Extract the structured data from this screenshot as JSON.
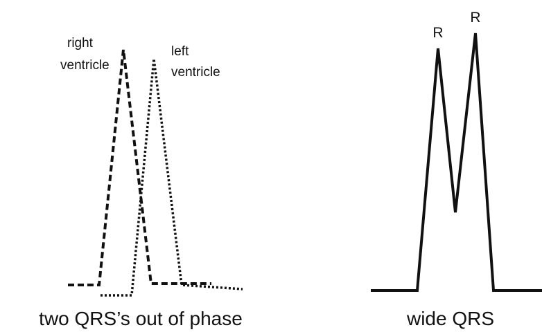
{
  "left_panel": {
    "right_label": [
      "right",
      "ventricle"
    ],
    "left_label": [
      "left",
      "ventricle"
    ],
    "caption": "two QRS’s out of phase"
  },
  "right_panel": {
    "peak_labels": [
      "R",
      "R"
    ],
    "caption": "wide QRS"
  }
}
